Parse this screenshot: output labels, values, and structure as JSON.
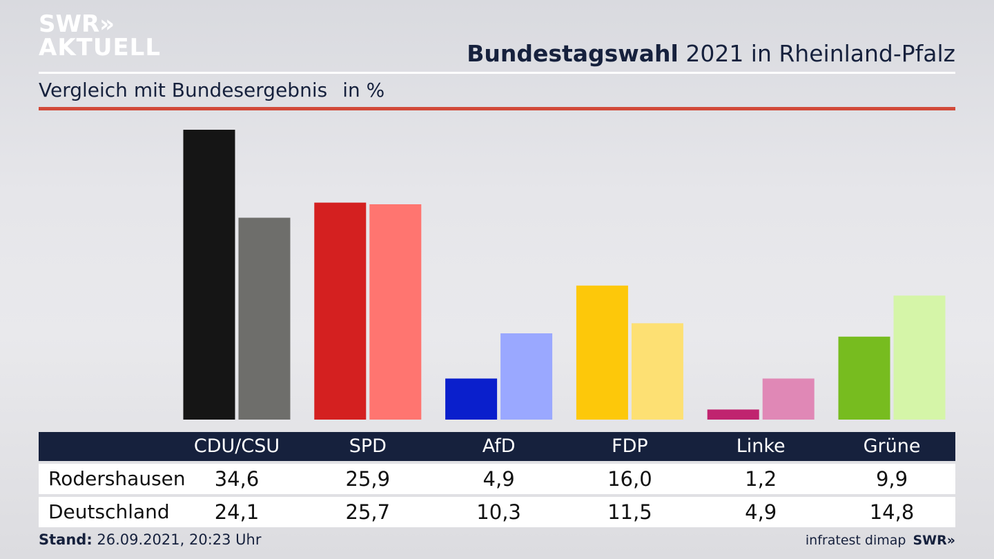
{
  "logo": {
    "line1": "SWR»",
    "line2": "AKTUELL"
  },
  "header": {
    "title_bold": "Bundestagswahl",
    "title_rest": " 2021 in Rheinland-Pfalz",
    "subtitle": "Vergleich mit Bundesergebnis",
    "unit": "in %"
  },
  "footer": {
    "stand_label": "Stand:",
    "stand_value": " 26.09.2021, 20:23 Uhr",
    "source": "infratest dimap",
    "brand": "SWR»"
  },
  "chart_data": {
    "type": "bar",
    "title": "Bundestagswahl 2021 in Rheinland-Pfalz",
    "subtitle": "Vergleich mit Bundesergebnis",
    "unit": "in %",
    "categories": [
      "CDU/CSU",
      "SPD",
      "AfD",
      "FDP",
      "Linke",
      "Grüne"
    ],
    "series": [
      {
        "name": "Rodershausen",
        "values": [
          "34,6",
          "25,9",
          "4,9",
          "16,0",
          "1,2",
          "9,9"
        ],
        "colors": [
          "#151515",
          "#d42020",
          "#0a1fcc",
          "#fdc80a",
          "#c0246f",
          "#77bc1f"
        ]
      },
      {
        "name": "Deutschland",
        "values": [
          "24,1",
          "25,7",
          "10,3",
          "11,5",
          "4,9",
          "14,8"
        ],
        "colors": [
          "#6e6e6b",
          "#ff7570",
          "#9aa8ff",
          "#fde073",
          "#e088b6",
          "#d5f5a8"
        ]
      }
    ],
    "ylim": [
      0,
      35
    ],
    "grid": false,
    "legend": "table below chart"
  }
}
